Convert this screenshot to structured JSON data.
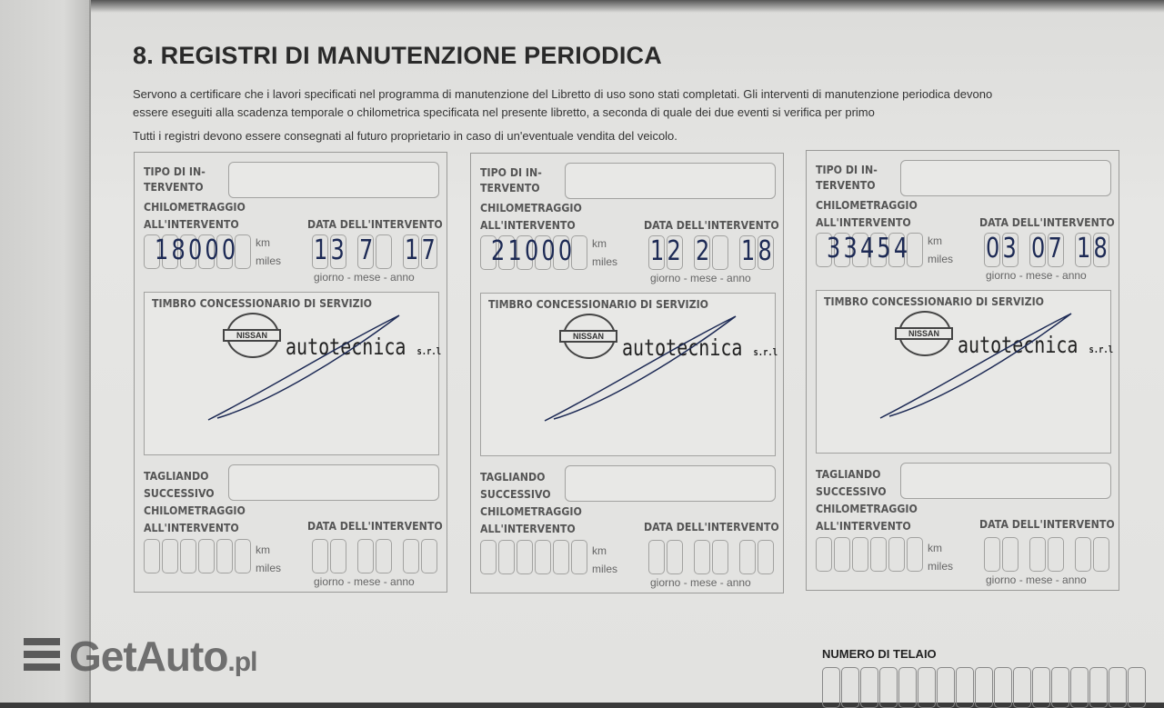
{
  "title": "8. REGISTRI DI MANUTENZIONE PERIODICA",
  "intro": [
    "Servono a certificare che i lavori specificati nel programma di manutenzione del Libretto di uso sono stati completati. Gli interventi di manutenzione periodica devono",
    "essere eseguiti alla scadenza temporale o chilometrica specificata nel presente libretto, a seconda di quale dei due eventi si verifica per primo",
    "Tutti i registri devono essere consegnati al futuro proprietario in caso di un'eventuale vendita del veicolo."
  ],
  "labels": {
    "tipo_1": "TIPO DI IN-",
    "tipo_2": "TERVENTO",
    "chilo": "CHILOMETRAGGIO",
    "all": "ALL'INTERVENTO",
    "data": "DATA DELL'INTERVENTO",
    "km": "km",
    "miles": "miles",
    "gma": "giorno - mese - anno",
    "timbro": "TIMBRO CONCESSIONARIO DI SERVIZIO",
    "tagl": "TAGLIANDO",
    "succ": "SUCCESSIVO"
  },
  "stamp": {
    "brand": "NISSAN",
    "dealer": "autotecnica",
    "suffix": "s.r.l"
  },
  "records": [
    {
      "km": "18000",
      "day": "13",
      "month": "7",
      "year": "17"
    },
    {
      "km": "21000",
      "day": "12",
      "month": "2",
      "year": "18"
    },
    {
      "km": "33454",
      "day": "03",
      "month": "07",
      "year": "18"
    }
  ],
  "vin_label": "NUMERO DI TELAIO",
  "watermark": {
    "name": "GetAuto",
    "tld": ".pl"
  }
}
